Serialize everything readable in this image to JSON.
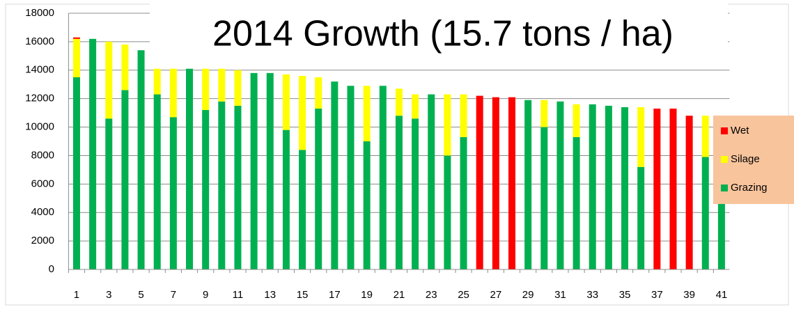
{
  "chart_data": {
    "type": "stacked-bar",
    "title": "2014 Growth (15.7 tons / ha)",
    "categories": [
      "1",
      null,
      "3",
      null,
      "5",
      null,
      "7",
      null,
      "9",
      null,
      "11",
      null,
      "13",
      null,
      "15",
      null,
      "17",
      null,
      "19",
      null,
      "21",
      null,
      "23",
      null,
      "25",
      null,
      "27",
      null,
      "29",
      null,
      "31",
      null,
      "33",
      null,
      "35",
      null,
      "37",
      null,
      "39",
      null,
      "41"
    ],
    "series": [
      {
        "name": "Grazing",
        "color": "#00b050",
        "values": [
          13500,
          16200,
          10600,
          12600,
          15400,
          12300,
          10700,
          14100,
          11200,
          11800,
          11500,
          13800,
          13800,
          9800,
          8400,
          11300,
          13200,
          12900,
          9000,
          12900,
          10800,
          10600,
          12300,
          8000,
          9300,
          null,
          null,
          null,
          11900,
          10000,
          11800,
          9300,
          11600,
          11500,
          11400,
          7200,
          null,
          null,
          null,
          7900,
          10700
        ]
      },
      {
        "name": "Silage",
        "color": "#ffff00",
        "values": [
          2700,
          null,
          5400,
          3200,
          null,
          1800,
          3400,
          null,
          2900,
          2300,
          2500,
          null,
          null,
          3900,
          5200,
          2200,
          null,
          null,
          3900,
          null,
          1900,
          1700,
          null,
          4300,
          3000,
          null,
          null,
          null,
          null,
          1900,
          null,
          2300,
          null,
          null,
          null,
          4200,
          null,
          null,
          null,
          2900,
          null
        ]
      },
      {
        "name": "Wet",
        "color": "#ff0000",
        "values": [
          100,
          null,
          null,
          null,
          null,
          null,
          null,
          null,
          null,
          null,
          null,
          null,
          null,
          null,
          null,
          null,
          null,
          null,
          null,
          null,
          null,
          null,
          null,
          null,
          null,
          12200,
          12100,
          12100,
          null,
          null,
          null,
          null,
          null,
          null,
          null,
          null,
          11300,
          11300,
          10800,
          null,
          null
        ]
      }
    ],
    "ylim": [
      0,
      18000
    ],
    "yticks": [
      0,
      2000,
      4000,
      6000,
      8000,
      10000,
      12000,
      14000,
      16000,
      18000
    ],
    "grid": true
  }
}
